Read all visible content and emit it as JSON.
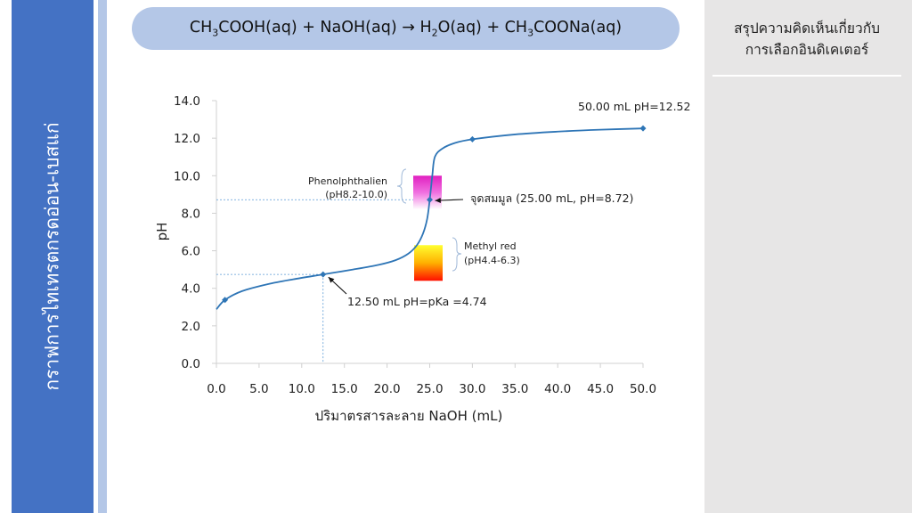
{
  "sidebar": {
    "title": "กราฟการไทเทรตกรดอ่อน-เบสแก่"
  },
  "equation": {
    "p1": "CH",
    "s1": "3",
    "p2": "COOH(aq) + NaOH(aq) → H",
    "s2": "2",
    "p3": "O(aq) + CH",
    "s3": "3",
    "p4": "COONa(aq)"
  },
  "panel": {
    "heading_line1": "สรุปความคิดเห็นเกี่ยวกับ",
    "heading_line2": "การเลือกอินดิเคเตอร์"
  },
  "colors": {
    "curve": "#2e75b6",
    "sidebar": "#4472c4",
    "stripe": "#b4c7e7",
    "panel": "#e7e6e6"
  },
  "chart_data": {
    "type": "line",
    "xlabel": "ปริมาตรสารละลาย NaOH (mL)",
    "ylabel": "pH",
    "xlim": [
      0,
      50
    ],
    "ylim": [
      0,
      14
    ],
    "x_ticks": [
      "0.0",
      "5.0",
      "10.0",
      "15.0",
      "20.0",
      "25.0",
      "30.0",
      "35.0",
      "40.0",
      "45.0",
      "50.0"
    ],
    "y_ticks": [
      "0.0",
      "2.0",
      "4.0",
      "6.0",
      "8.0",
      "10.0",
      "12.0",
      "14.0"
    ],
    "grid": false,
    "series": [
      {
        "curve": [
          [
            0,
            2.88
          ],
          [
            1,
            3.38
          ],
          [
            3,
            3.85
          ],
          [
            6,
            4.22
          ],
          [
            9,
            4.48
          ],
          [
            12.5,
            4.74
          ],
          [
            16,
            5.0
          ],
          [
            19,
            5.25
          ],
          [
            21,
            5.5
          ],
          [
            22.5,
            5.85
          ],
          [
            23.5,
            6.3
          ],
          [
            24.2,
            6.9
          ],
          [
            24.7,
            7.7
          ],
          [
            25,
            8.72
          ],
          [
            25.3,
            10.0
          ],
          [
            25.6,
            11.0
          ],
          [
            26.5,
            11.45
          ],
          [
            28,
            11.75
          ],
          [
            30,
            11.94
          ],
          [
            35,
            12.2
          ],
          [
            40,
            12.35
          ],
          [
            45,
            12.45
          ],
          [
            50,
            12.52
          ]
        ],
        "markers": [
          [
            1,
            3.38
          ],
          [
            12.5,
            4.74
          ],
          [
            25,
            8.72
          ],
          [
            30,
            11.94
          ],
          [
            50,
            12.52
          ]
        ]
      }
    ],
    "annotations": {
      "endpoint": "50.00 mL pH=12.52",
      "equivalence": "จุดสมมูล (25.00 mL, pH=8.72)",
      "half_equivalence": "12.50 mL pH=pKa =4.74",
      "phenol_name": "Phenolphthalien",
      "phenol_range": "(pH8.2-10.0)",
      "methyl_name": "Methyl red",
      "methyl_range": "(pH4.4-6.3)"
    },
    "indicator_ranges": {
      "phenolphthalein": [
        8.2,
        10.0
      ],
      "methyl_red": [
        4.4,
        6.3
      ]
    }
  }
}
